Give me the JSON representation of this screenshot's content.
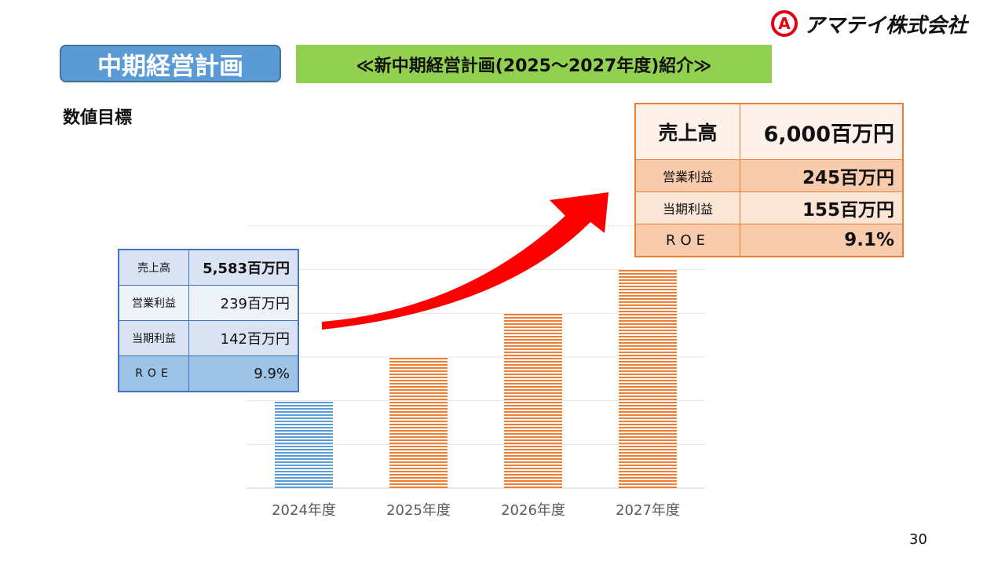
{
  "header": {
    "logo_mark": "A",
    "company": "アマテイ株式会社",
    "section": "中期経営計画",
    "title": "≪新中期経営計画(2025～2027年度)紹介≫"
  },
  "subheading": "数値目標",
  "current_results": {
    "rows": [
      {
        "label": "売上高",
        "value": "5,583百万円"
      },
      {
        "label": "営業利益",
        "value": "239百万円"
      },
      {
        "label": "当期利益",
        "value": "142百万円"
      },
      {
        "label": "ROE",
        "value": "9.9%"
      }
    ]
  },
  "target": {
    "rows": [
      {
        "label": "売上高",
        "value": "6,000百万円"
      },
      {
        "label": "営業利益",
        "value": "245百万円"
      },
      {
        "label": "当期利益",
        "value": "155百万円"
      },
      {
        "label": "ROE",
        "value": "9.1%"
      }
    ]
  },
  "chart_data": {
    "type": "bar",
    "categories": [
      "2024年度",
      "2025年度",
      "2026年度",
      "2027年度"
    ],
    "values": [
      2,
      3,
      4,
      5
    ],
    "ylim": [
      0,
      6
    ],
    "grid": true,
    "bar_colors": [
      "#5b9bd5",
      "#ed7d31",
      "#ed7d31",
      "#ed7d31"
    ],
    "arrow_color": "#ff0000"
  },
  "page_number": "30"
}
